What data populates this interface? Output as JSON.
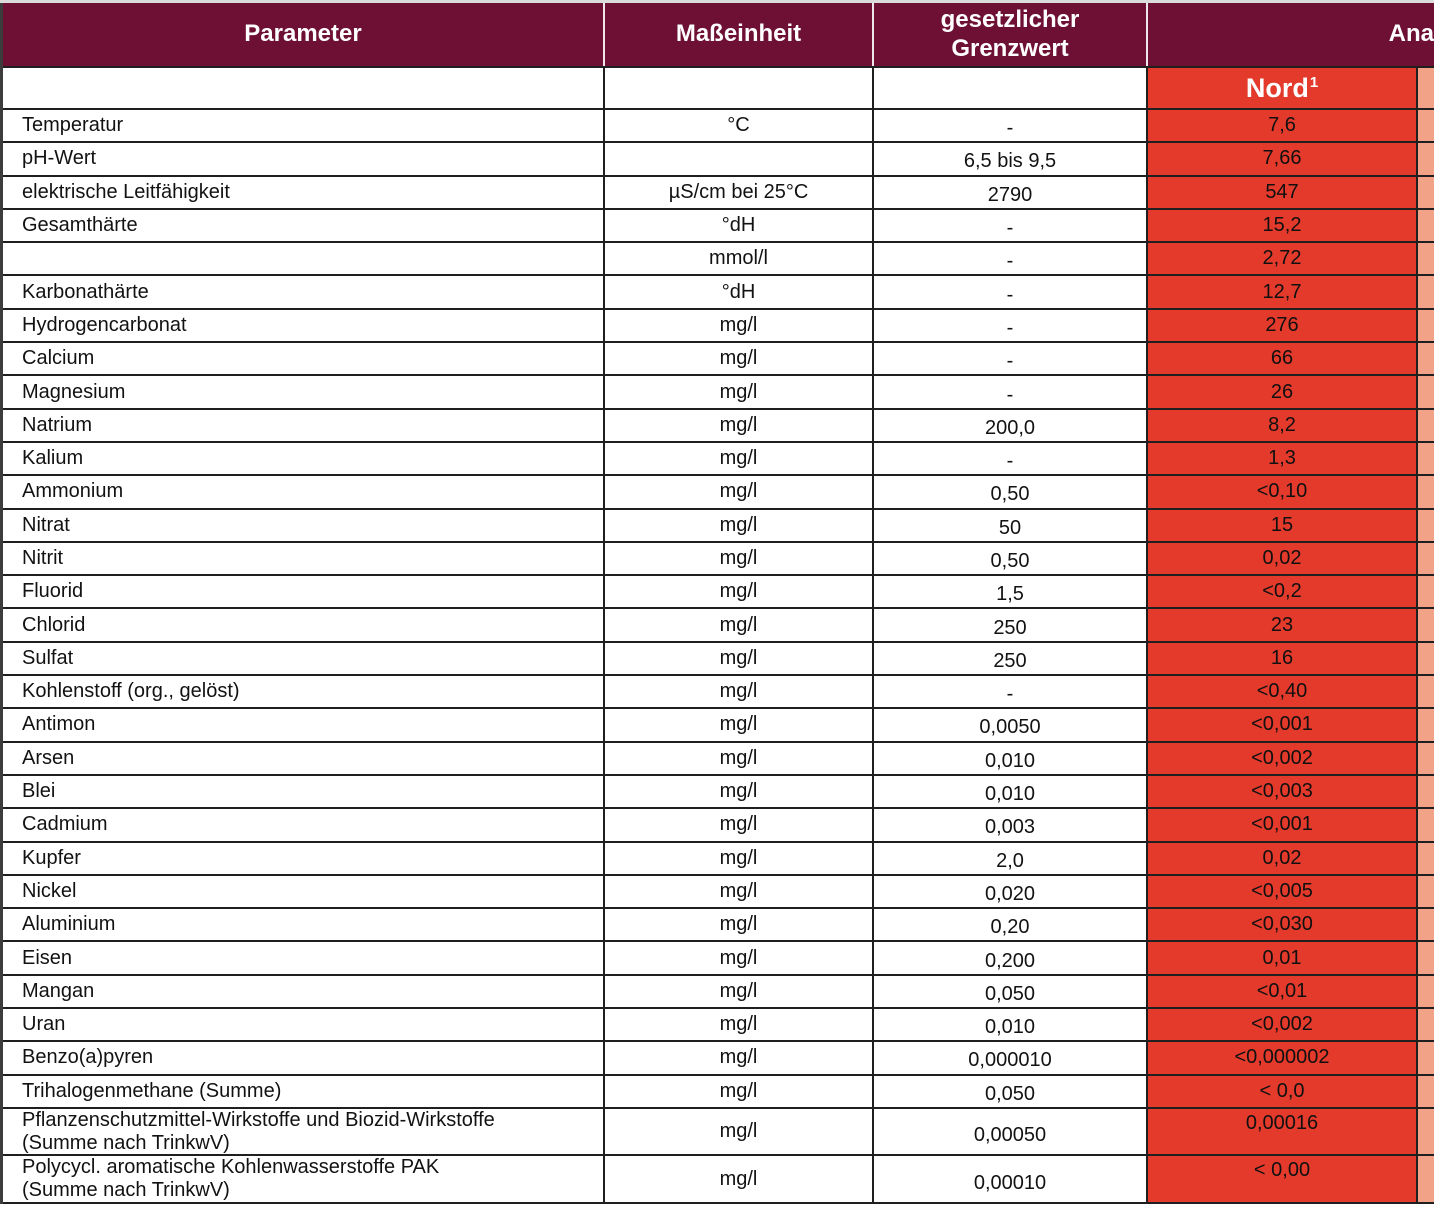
{
  "header": {
    "parameter": "Parameter",
    "unit": "Maßeinheit",
    "limit": "gesetzlicher Grenzwert",
    "analysis_partial": "Ana",
    "site_north": "Nord",
    "site_north_sup": "1"
  },
  "colors": {
    "header_bg": "#6E0F34",
    "value_column_bg": "#E43A2C",
    "next_column_bg": "#F2A287",
    "grid_line": "#1F1F1F",
    "header_separator": "#EFE6EA",
    "top_strip": "#DCDCDC"
  },
  "rows": [
    {
      "param": "Temperatur",
      "unit": "°C",
      "limit": "-",
      "nord": "7,6"
    },
    {
      "param": "pH-Wert",
      "unit": "",
      "limit": "6,5 bis 9,5",
      "nord": "7,66"
    },
    {
      "param": "elektrische Leitfähigkeit",
      "unit": "µS/cm bei 25°C",
      "limit": "2790",
      "nord": "547"
    },
    {
      "param": "Gesamthärte",
      "unit": "°dH",
      "limit": "-",
      "nord": "15,2"
    },
    {
      "param": "",
      "unit": "mmol/l",
      "limit": "-",
      "nord": "2,72"
    },
    {
      "param": "Karbonathärte",
      "unit": "°dH",
      "limit": "-",
      "nord": "12,7"
    },
    {
      "param": "Hydrogencarbonat",
      "unit": "mg/l",
      "limit": "-",
      "nord": "276"
    },
    {
      "param": "Calcium",
      "unit": "mg/l",
      "limit": "-",
      "nord": "66"
    },
    {
      "param": "Magnesium",
      "unit": "mg/l",
      "limit": "-",
      "nord": "26"
    },
    {
      "param": "Natrium",
      "unit": "mg/l",
      "limit": "200,0",
      "nord": "8,2"
    },
    {
      "param": "Kalium",
      "unit": "mg/l",
      "limit": "-",
      "nord": "1,3"
    },
    {
      "param": "Ammonium",
      "unit": "mg/l",
      "limit": "0,50",
      "nord": "<0,10"
    },
    {
      "param": "Nitrat",
      "unit": "mg/l",
      "limit": "50",
      "nord": "15"
    },
    {
      "param": "Nitrit",
      "unit": "mg/l",
      "limit": "0,50",
      "nord": "0,02"
    },
    {
      "param": "Fluorid",
      "unit": "mg/l",
      "limit": "1,5",
      "nord": "<0,2"
    },
    {
      "param": "Chlorid",
      "unit": "mg/l",
      "limit": "250",
      "nord": "23"
    },
    {
      "param": "Sulfat",
      "unit": "mg/l",
      "limit": "250",
      "nord": "16"
    },
    {
      "param": "Kohlenstoff (org., gelöst)",
      "unit": "mg/l",
      "limit": "-",
      "nord": "<0,40"
    },
    {
      "param": "Antimon",
      "unit": "mg/l",
      "limit": "0,0050",
      "nord": "<0,001"
    },
    {
      "param": "Arsen",
      "unit": "mg/l",
      "limit": "0,010",
      "nord": "<0,002"
    },
    {
      "param": "Blei",
      "unit": "mg/l",
      "limit": "0,010",
      "nord": "<0,003"
    },
    {
      "param": "Cadmium",
      "unit": "mg/l",
      "limit": "0,003",
      "nord": "<0,001"
    },
    {
      "param": "Kupfer",
      "unit": "mg/l",
      "limit": "2,0",
      "nord": "0,02"
    },
    {
      "param": "Nickel",
      "unit": "mg/l",
      "limit": "0,020",
      "nord": "<0,005"
    },
    {
      "param": "Aluminium",
      "unit": "mg/l",
      "limit": "0,20",
      "nord": "<0,030"
    },
    {
      "param": "Eisen",
      "unit": "mg/l",
      "limit": "0,200",
      "nord": "0,01"
    },
    {
      "param": "Mangan",
      "unit": "mg/l",
      "limit": "0,050",
      "nord": "<0,01"
    },
    {
      "param": "Uran",
      "unit": "mg/l",
      "limit": "0,010",
      "nord": "<0,002"
    },
    {
      "param": "Benzo(a)pyren",
      "unit": "mg/l",
      "limit": "0,000010",
      "nord": "<0,000002"
    },
    {
      "param": "Trihalogenmethane (Summe)",
      "unit": "mg/l",
      "limit": "0,050",
      "nord": "< 0,0"
    },
    {
      "param": "Pflanzenschutzmittel-Wirkstoffe und Biozid-Wirkstoffe",
      "param2": "(Summe nach TrinkwV)",
      "unit": "mg/l",
      "limit": "0,00050",
      "nord": "0,00016"
    },
    {
      "param": "Polycycl. aromatische Kohlenwasserstoffe PAK",
      "param2": "(Summe nach TrinkwV)",
      "unit": "mg/l",
      "limit": "0,00010",
      "nord": "< 0,00"
    }
  ]
}
